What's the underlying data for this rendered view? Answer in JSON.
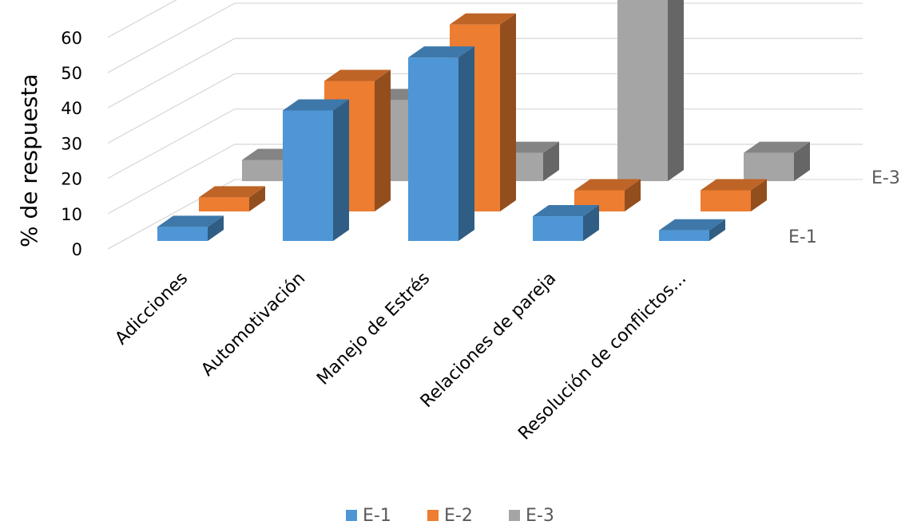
{
  "chart_data": {
    "type": "bar",
    "variant": "3d-column",
    "title": "",
    "xlabel": "",
    "ylabel": "% de respuesta",
    "ylim": [
      0,
      60
    ],
    "yticks": [
      "0",
      "10",
      "20",
      "30",
      "40",
      "50",
      "60"
    ],
    "categories": [
      "Adicciones",
      "Automotivación",
      "Manejo de Estrés",
      "Relaciones de pareja",
      "Resolución de conflictos..."
    ],
    "series": [
      {
        "name": "E-1",
        "color": "#4E96D5",
        "values": [
          4,
          37,
          52,
          7,
          3
        ]
      },
      {
        "name": "E-2",
        "color": "#ED7D31",
        "values": [
          4,
          37,
          53,
          6,
          6
        ]
      },
      {
        "name": "E-3",
        "color": "#A5A5A5",
        "values": [
          6,
          23,
          8,
          55,
          8
        ]
      }
    ],
    "depth_labels": [
      "E-1",
      "E-3"
    ],
    "grid": true,
    "legend": "bottom"
  }
}
